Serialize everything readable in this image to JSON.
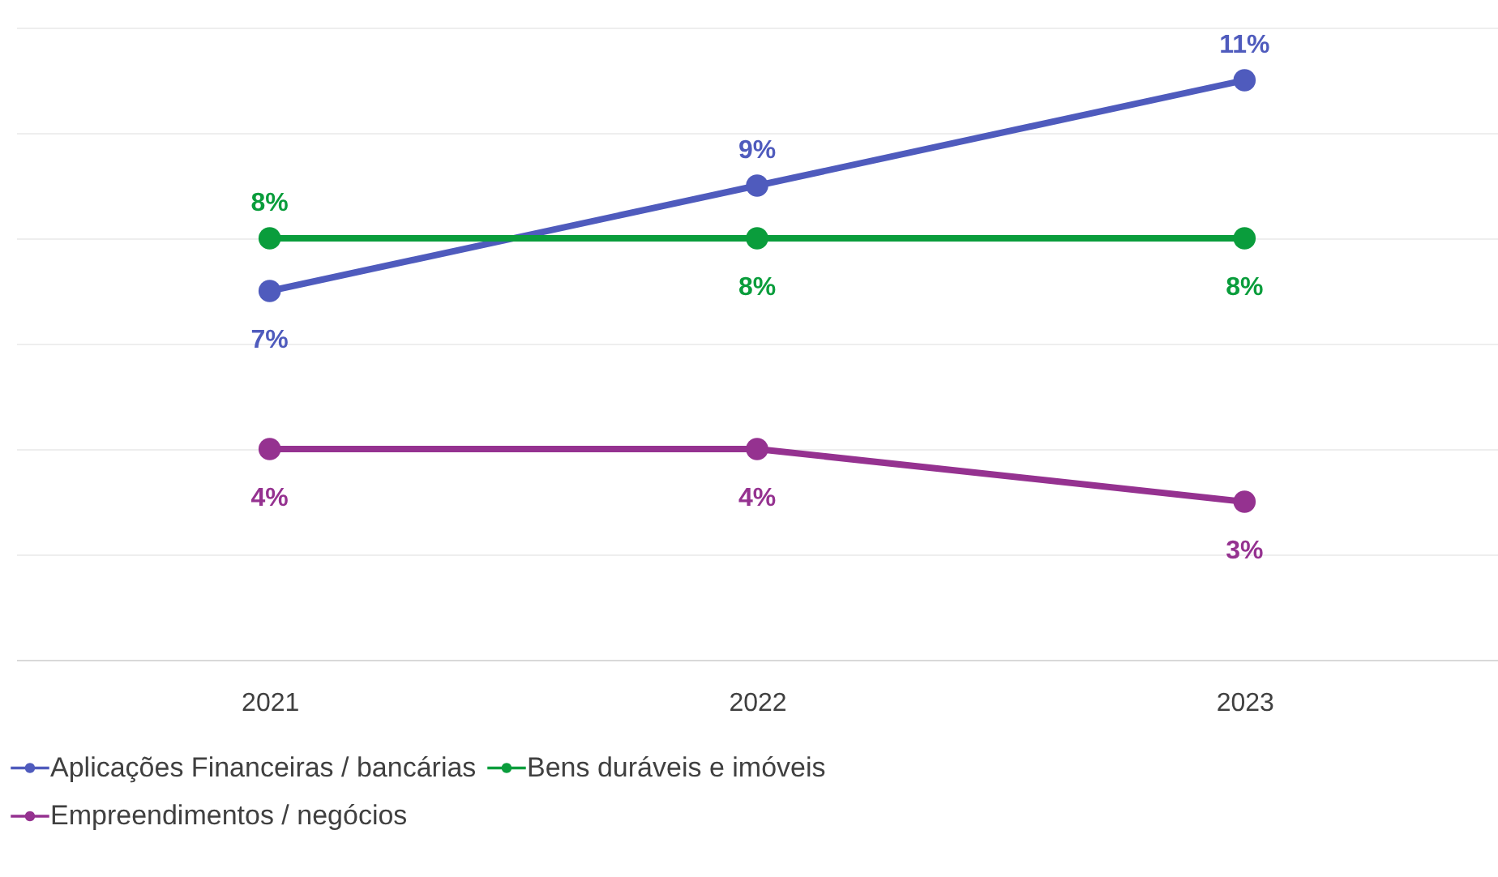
{
  "chart_data": {
    "type": "line",
    "categories": [
      "2021",
      "2022",
      "2023"
    ],
    "ylim": [
      0,
      12
    ],
    "yticks": [
      {
        "value": 0,
        "label": null
      },
      {
        "value": 2,
        "label": null
      },
      {
        "value": 4,
        "label": null
      },
      {
        "value": 6,
        "label": null
      },
      {
        "value": 8,
        "label": null
      },
      {
        "value": 10,
        "label": null
      },
      {
        "value": 12,
        "label": null
      }
    ],
    "tick_labels": "x",
    "grid": "y",
    "legend": "bottom",
    "marker": "circle",
    "line_style": "solid",
    "series": [
      {
        "name": "Aplicações Financeiras / bancárias",
        "color": "#4f5bbd",
        "values": [
          7,
          9,
          11
        ],
        "value_labels": [
          "7%",
          "9%",
          "11%"
        ]
      },
      {
        "name": "Bens duráveis e imóveis",
        "color": "#0a9d3c",
        "values": [
          8,
          8,
          8
        ],
        "value_labels": [
          "8%",
          "8%",
          "8%"
        ]
      },
      {
        "name": "Empreendimentos / negócios",
        "color": "#953290",
        "values": [
          4,
          4,
          3
        ],
        "value_labels": [
          "4%",
          "4%",
          "3%"
        ]
      }
    ]
  }
}
